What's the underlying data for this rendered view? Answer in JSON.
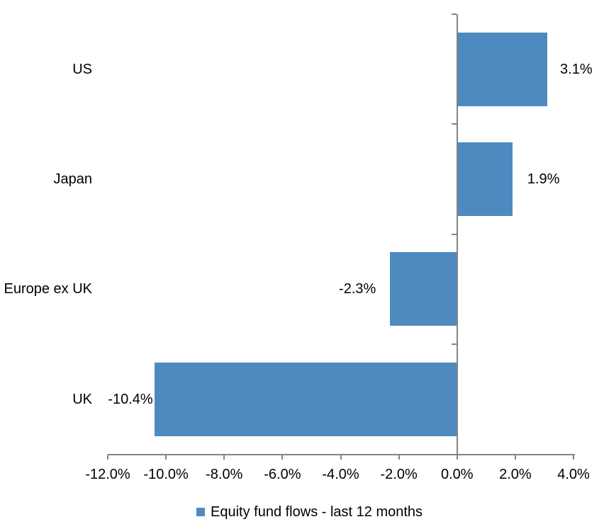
{
  "chart_data": {
    "type": "bar",
    "orientation": "horizontal",
    "title": "",
    "xlabel": "",
    "ylabel": "",
    "categories": [
      "US",
      "Japan",
      "Europe ex UK",
      "UK"
    ],
    "series": [
      {
        "name": "Equity fund flows - last 12 months",
        "values": [
          3.1,
          1.9,
          -2.3,
          -10.4
        ]
      }
    ],
    "data_labels": [
      "3.1%",
      "1.9%",
      "-2.3%",
      "-10.4%"
    ],
    "xlim": [
      -12,
      4
    ],
    "x_tick_step": 2,
    "x_tick_labels": [
      "-12.0%",
      "-10.0%",
      "-8.0%",
      "-6.0%",
      "-4.0%",
      "-2.0%",
      "0.0%",
      "2.0%",
      "4.0%"
    ],
    "grid": false,
    "legend": {
      "position": "bottom",
      "label": "Equity fund flows - last 12 months"
    },
    "colors": {
      "bar": "#4E8ABF",
      "axis": "#848484",
      "text": "#000000",
      "background": "#FFFFFF"
    }
  }
}
